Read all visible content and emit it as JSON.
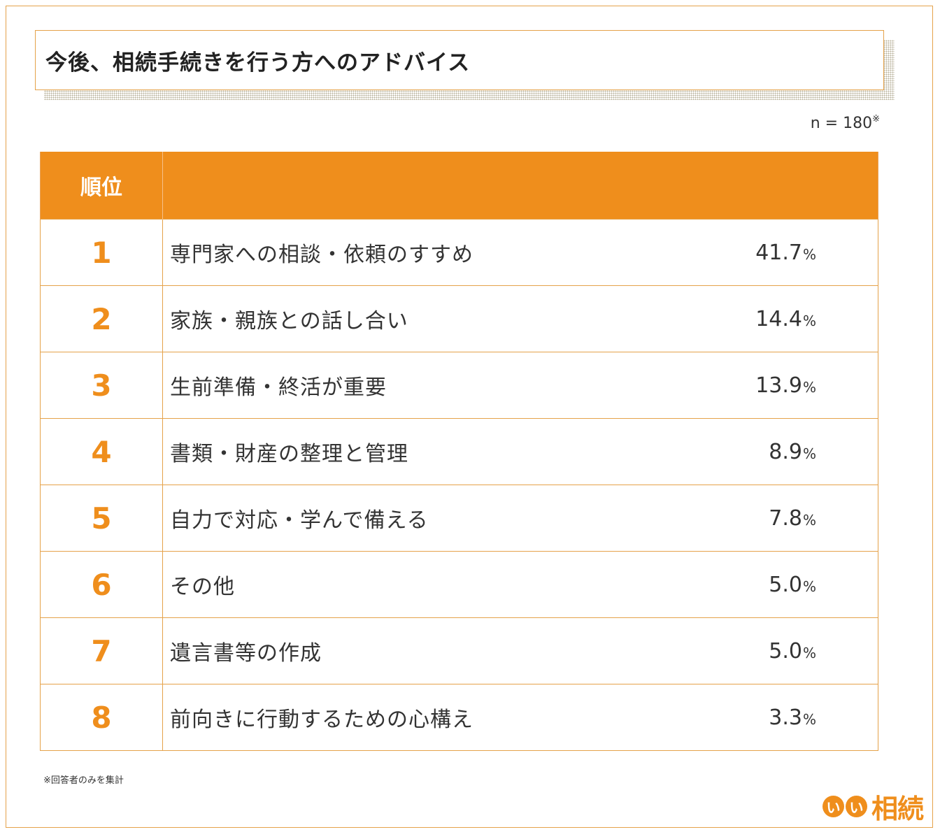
{
  "title": "今後、相続手続きを行う方へのアドバイス",
  "sample": {
    "text": "n = 180",
    "mark": "※"
  },
  "table": {
    "header_rank": "順位",
    "header_rest": "",
    "rows": [
      {
        "rank": "1",
        "label": "専門家への相談・依頼のすすめ",
        "value": "41.7",
        "unit": "%"
      },
      {
        "rank": "2",
        "label": "家族・親族との話し合い",
        "value": "14.4",
        "unit": "%"
      },
      {
        "rank": "3",
        "label": "生前準備・終活が重要",
        "value": "13.9",
        "unit": "%"
      },
      {
        "rank": "4",
        "label": "書類・財産の整理と管理",
        "value": "8.9",
        "unit": "%"
      },
      {
        "rank": "5",
        "label": "自力で対応・学んで備える",
        "value": "7.8",
        "unit": "%"
      },
      {
        "rank": "6",
        "label": "その他",
        "value": "5.0",
        "unit": "%"
      },
      {
        "rank": "7",
        "label": "遺言書等の作成",
        "value": "5.0",
        "unit": "%"
      },
      {
        "rank": "8",
        "label": "前向きに行動するための心構え",
        "value": "3.3",
        "unit": "%"
      }
    ]
  },
  "note": "※回答者のみを集計",
  "logo": {
    "badge1": "い",
    "badge2": "い",
    "brand": "相続"
  },
  "colors": {
    "accent": "#ef8e1c",
    "border": "#e5a24a"
  }
}
